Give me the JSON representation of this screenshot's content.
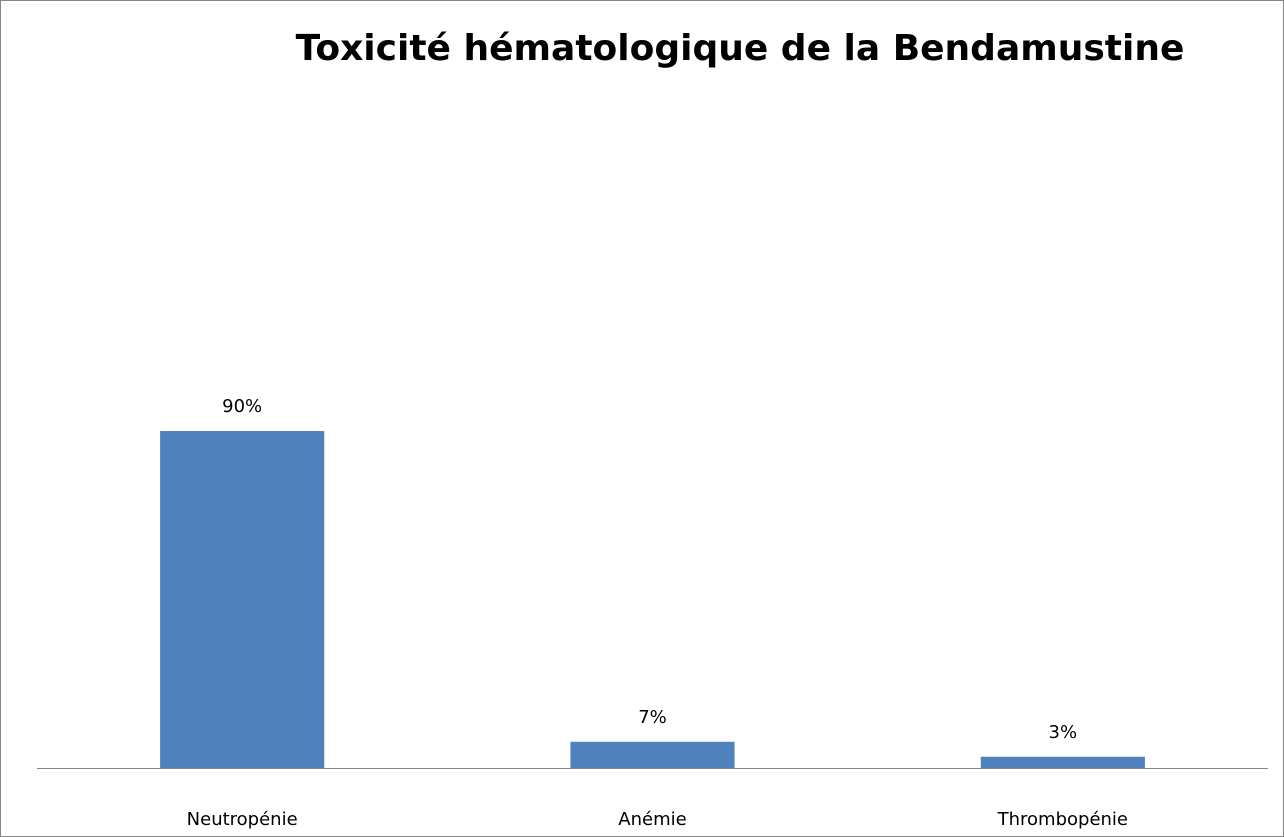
{
  "chart_data": {
    "type": "bar",
    "title": "Toxicité hématologique de la Bendamustine",
    "categories": [
      "Neutropénie",
      "Anémie",
      "Thrombopénie"
    ],
    "values": [
      90,
      7,
      3
    ],
    "value_labels": [
      "90%",
      "7%",
      "3%"
    ],
    "color": "#4f81bd"
  }
}
